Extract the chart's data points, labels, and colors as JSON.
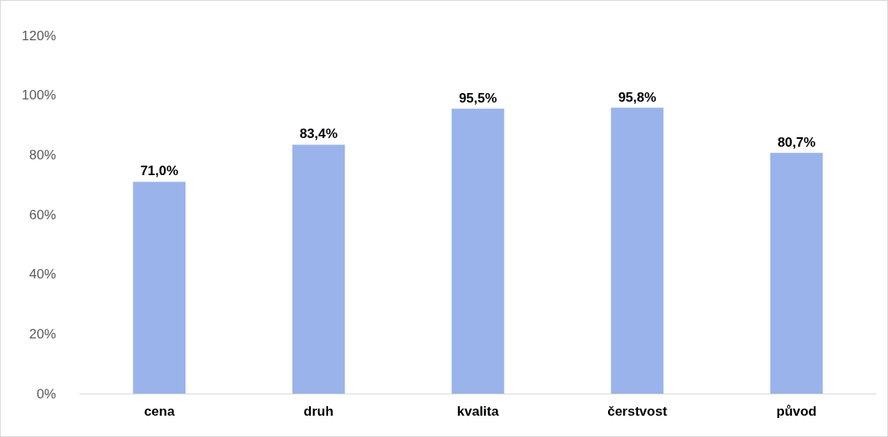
{
  "chart_data": {
    "type": "bar",
    "categories": [
      "cena",
      "druh",
      "kvalita",
      "čerstvost",
      "původ"
    ],
    "values": [
      71.0,
      83.4,
      95.5,
      95.8,
      80.7
    ],
    "value_labels": [
      "71,0%",
      "83,4%",
      "95,5%",
      "95,8%",
      "80,7%"
    ],
    "color": "#9ab3ea",
    "ylim": [
      0,
      120
    ],
    "yticks": [
      {
        "value": 0,
        "label": "0%"
      },
      {
        "value": 20,
        "label": "20%"
      },
      {
        "value": 40,
        "label": "40%"
      },
      {
        "value": 60,
        "label": "60%"
      },
      {
        "value": 80,
        "label": "80%"
      },
      {
        "value": 100,
        "label": "100%"
      },
      {
        "value": 120,
        "label": "120%"
      }
    ],
    "grid": false
  }
}
